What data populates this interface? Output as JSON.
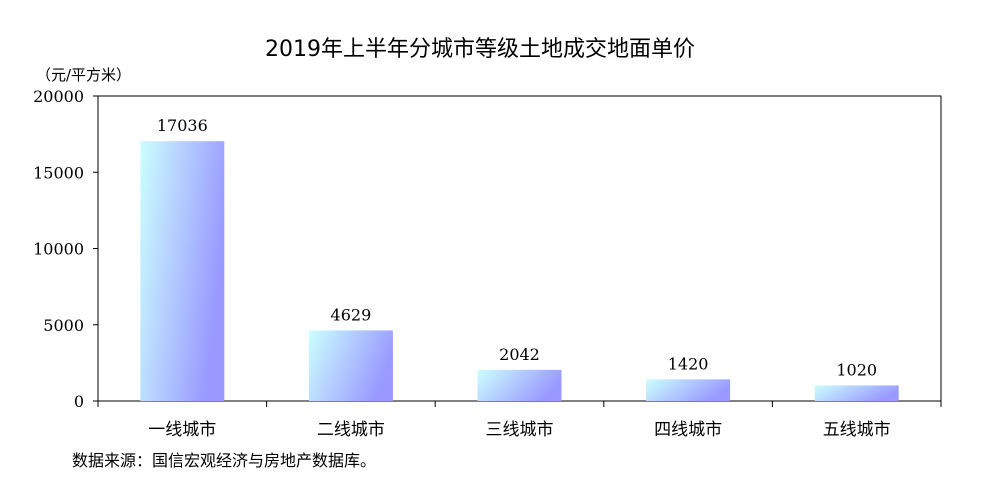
{
  "chart_data": {
    "type": "bar",
    "title": "2019年上半年分城市等级土地成交地面单价",
    "unit_label": "（元/平方米）",
    "categories": [
      "一线城市",
      "二线城市",
      "三线城市",
      "四线城市",
      "五线城市"
    ],
    "values": [
      17036,
      4629,
      2042,
      1420,
      1020
    ],
    "data_labels": [
      "17036",
      "4629",
      "2042",
      "1420",
      "1020"
    ],
    "ylim": [
      0,
      20000
    ],
    "yticks": [
      0,
      5000,
      10000,
      15000,
      20000
    ],
    "ytick_labels": [
      "0",
      "5000",
      "10000",
      "15000",
      "20000"
    ],
    "grid": false,
    "legend": "none",
    "colors": {
      "bar_light": "#ccffff",
      "bar_dark": "#9999ff",
      "axis": "#000000",
      "frame": "#000000"
    },
    "source": "数据来源：国信宏观经济与房地产数据库。"
  }
}
